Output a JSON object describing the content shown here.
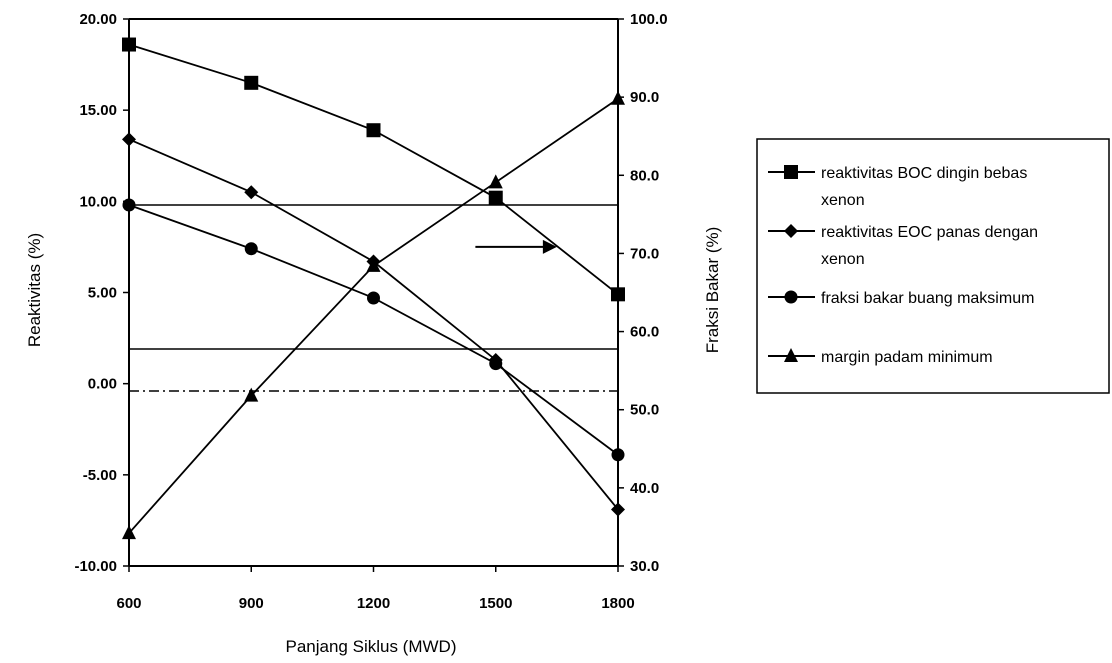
{
  "chart_data": {
    "type": "line",
    "title": "",
    "xlabel": "Panjang Siklus (MWD)",
    "ylabel": "Reaktivitas (%)",
    "y2label": "Fraksi Bakar (%)",
    "x": [
      600,
      900,
      1200,
      1500,
      1800
    ],
    "x_tick_labels": [
      "600",
      "900",
      "1200",
      "1500",
      "1800"
    ],
    "ylim": [
      -10,
      20
    ],
    "y_ticks": [
      -10,
      -5,
      0,
      5,
      10,
      15,
      20
    ],
    "y_tick_labels": [
      "-10.00",
      "-5.00",
      "0.00",
      "5.00",
      "10.00",
      "15.00",
      "20.00"
    ],
    "y2lim": [
      30,
      100
    ],
    "y2_ticks": [
      30,
      40,
      50,
      60,
      70,
      80,
      90,
      100
    ],
    "y2_tick_labels": [
      "30.0",
      "40.0",
      "50.0",
      "60.0",
      "70.0",
      "80.0",
      "90.0",
      "100.0"
    ],
    "grid": false,
    "legend_position": "right",
    "series": [
      {
        "name": "reaktivitas BOC dingin bebas xenon",
        "marker": "square",
        "axis": "left",
        "values": [
          18.6,
          16.5,
          13.9,
          10.2,
          4.9
        ]
      },
      {
        "name": "reaktivitas EOC panas dengan xenon",
        "marker": "diamond",
        "axis": "left",
        "values": [
          13.4,
          10.5,
          6.7,
          1.3,
          -6.9
        ]
      },
      {
        "name": "fraksi bakar buang maksimum",
        "marker": "circle",
        "axis": "left",
        "values": [
          9.8,
          7.4,
          4.7,
          1.1,
          -3.9
        ]
      },
      {
        "name": "margin padam minimum",
        "marker": "triangle",
        "axis": "right",
        "values": [
          34.2,
          51.8,
          68.4,
          79.1,
          89.8
        ]
      }
    ],
    "reference_lines": [
      {
        "y": 9.8,
        "style": "solid"
      },
      {
        "y": 1.9,
        "style": "solid"
      },
      {
        "y": -0.4,
        "style": "dashdot"
      }
    ],
    "annotation_arrow": {
      "from_x": 1450,
      "to_x": 1650,
      "y": 7.5
    }
  }
}
